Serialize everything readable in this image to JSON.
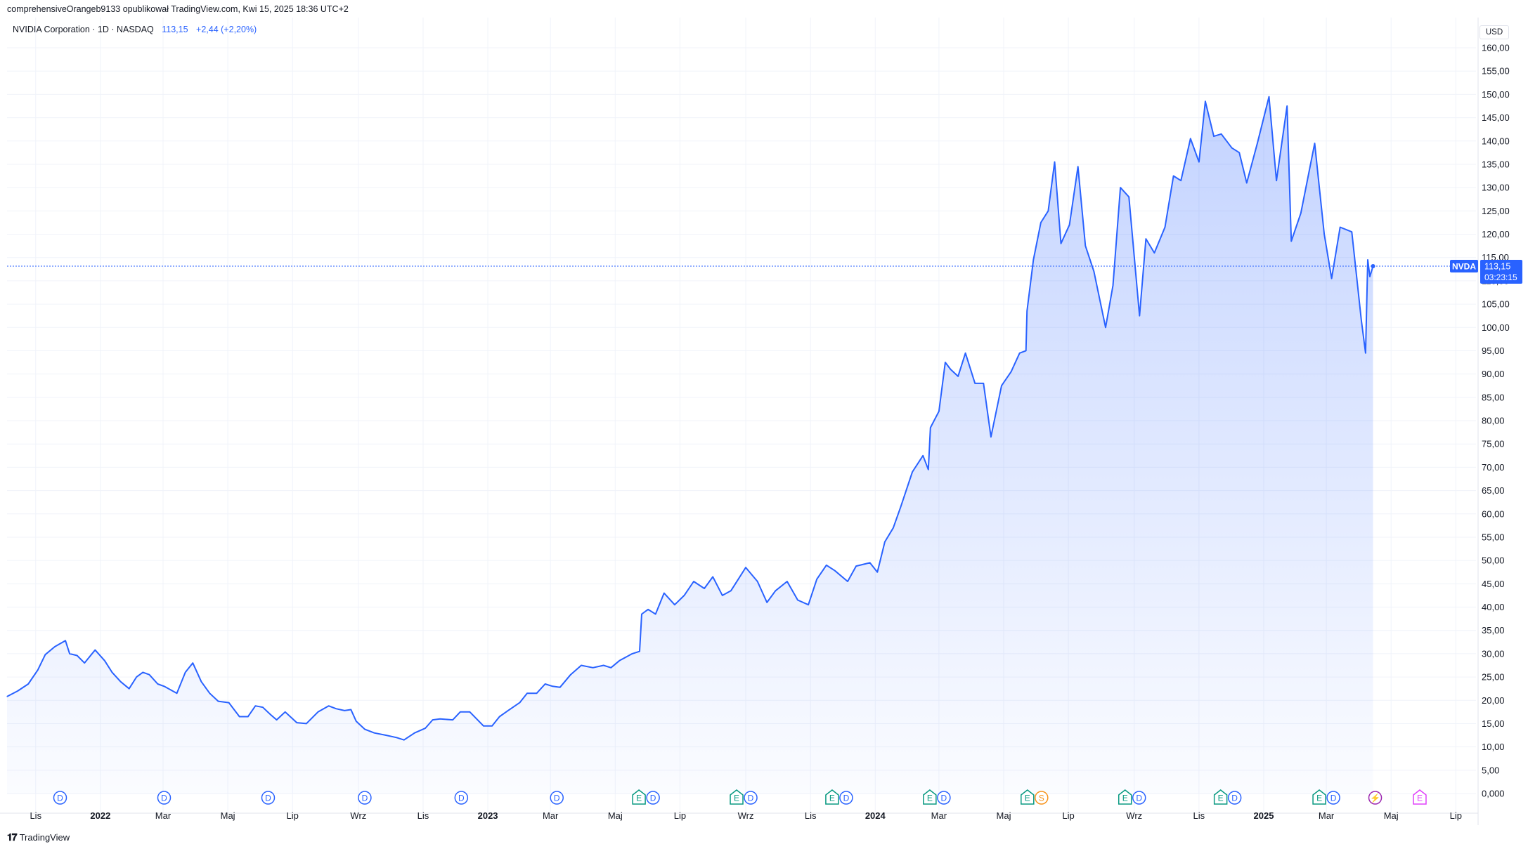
{
  "caption": "comprehensiveOrangeb9133 opublikował TradingView.com, Kwi 15, 2025 18:36 UTC+2",
  "legend": {
    "symbol": "NVIDIA Corporation · 1D · NASDAQ",
    "last": "113,15",
    "change": "+2,44 (+2,20%)"
  },
  "currency": "USD",
  "price_label": {
    "ticker": "NVDA",
    "price": "113,15",
    "countdown": "03:23:15"
  },
  "brand": "TradingView",
  "colors": {
    "line": "#2962ff",
    "fill": "#2962ff",
    "grid": "#f0f3fa",
    "earnings": "#089981",
    "dividend": "#2962ff",
    "split": "#f7931a",
    "event_purple": "#9c27b0",
    "event_magenta": "#e040fb"
  },
  "chart_data": {
    "type": "area",
    "title": "NVIDIA Corporation · 1D · NASDAQ",
    "ylabel": "USD",
    "ylim": [
      0,
      160
    ],
    "grid": true,
    "y_ticks": [
      "0,000",
      "5,00",
      "10,00",
      "15,00",
      "20,00",
      "25,00",
      "30,00",
      "35,00",
      "40,00",
      "45,00",
      "50,00",
      "55,00",
      "60,00",
      "65,00",
      "70,00",
      "75,00",
      "80,00",
      "85,00",
      "90,00",
      "95,00",
      "100,00",
      "105,00",
      "110,00",
      "115,00",
      "120,00",
      "125,00",
      "130,00",
      "135,00",
      "140,00",
      "145,00",
      "150,00",
      "155,00",
      "160,00"
    ],
    "x_ticks": [
      {
        "label": "Lis",
        "date": "2021-11-01",
        "bold": false
      },
      {
        "label": "2022",
        "date": "2022-01-01",
        "bold": true
      },
      {
        "label": "Mar",
        "date": "2022-03-01",
        "bold": false
      },
      {
        "label": "Maj",
        "date": "2022-05-01",
        "bold": false
      },
      {
        "label": "Lip",
        "date": "2022-07-01",
        "bold": false
      },
      {
        "label": "Wrz",
        "date": "2022-09-01",
        "bold": false
      },
      {
        "label": "Lis",
        "date": "2022-11-01",
        "bold": false
      },
      {
        "label": "2023",
        "date": "2023-01-01",
        "bold": true
      },
      {
        "label": "Mar",
        "date": "2023-03-01",
        "bold": false
      },
      {
        "label": "Maj",
        "date": "2023-05-01",
        "bold": false
      },
      {
        "label": "Lip",
        "date": "2023-07-01",
        "bold": false
      },
      {
        "label": "Wrz",
        "date": "2023-09-01",
        "bold": false
      },
      {
        "label": "Lis",
        "date": "2023-11-01",
        "bold": false
      },
      {
        "label": "2024",
        "date": "2024-01-01",
        "bold": true
      },
      {
        "label": "Mar",
        "date": "2024-03-01",
        "bold": false
      },
      {
        "label": "Maj",
        "date": "2024-05-01",
        "bold": false
      },
      {
        "label": "Lip",
        "date": "2024-07-01",
        "bold": false
      },
      {
        "label": "Wrz",
        "date": "2024-09-01",
        "bold": false
      },
      {
        "label": "Lis",
        "date": "2024-11-01",
        "bold": false
      },
      {
        "label": "2025",
        "date": "2025-01-01",
        "bold": true
      },
      {
        "label": "Mar",
        "date": "2025-03-01",
        "bold": false
      },
      {
        "label": "Maj",
        "date": "2025-05-01",
        "bold": false
      },
      {
        "label": "Lip",
        "date": "2025-07-01",
        "bold": false
      }
    ],
    "x_range": [
      "2021-10-05",
      "2025-07-20"
    ],
    "series": [
      {
        "name": "NVDA",
        "points": [
          [
            "2021-10-05",
            20.8
          ],
          [
            "2021-10-15",
            22.0
          ],
          [
            "2021-10-25",
            23.5
          ],
          [
            "2021-11-03",
            26.5
          ],
          [
            "2021-11-10",
            29.8
          ],
          [
            "2021-11-19",
            31.5
          ],
          [
            "2021-11-29",
            32.8
          ],
          [
            "2021-12-03",
            30.0
          ],
          [
            "2021-12-10",
            29.6
          ],
          [
            "2021-12-17",
            28.0
          ],
          [
            "2021-12-27",
            30.8
          ],
          [
            "2022-01-05",
            28.5
          ],
          [
            "2022-01-12",
            26.0
          ],
          [
            "2022-01-20",
            24.0
          ],
          [
            "2022-01-28",
            22.5
          ],
          [
            "2022-02-04",
            25.0
          ],
          [
            "2022-02-10",
            26.0
          ],
          [
            "2022-02-16",
            25.5
          ],
          [
            "2022-02-24",
            23.5
          ],
          [
            "2022-03-02",
            23.0
          ],
          [
            "2022-03-14",
            21.5
          ],
          [
            "2022-03-22",
            26.0
          ],
          [
            "2022-03-29",
            28.0
          ],
          [
            "2022-04-06",
            24.0
          ],
          [
            "2022-04-14",
            21.5
          ],
          [
            "2022-04-22",
            19.8
          ],
          [
            "2022-05-02",
            19.5
          ],
          [
            "2022-05-12",
            16.5
          ],
          [
            "2022-05-20",
            16.5
          ],
          [
            "2022-05-27",
            18.8
          ],
          [
            "2022-06-03",
            18.5
          ],
          [
            "2022-06-10",
            17.0
          ],
          [
            "2022-06-16",
            15.8
          ],
          [
            "2022-06-24",
            17.5
          ],
          [
            "2022-07-05",
            15.2
          ],
          [
            "2022-07-14",
            15.0
          ],
          [
            "2022-07-25",
            17.5
          ],
          [
            "2022-08-04",
            18.8
          ],
          [
            "2022-08-11",
            18.2
          ],
          [
            "2022-08-19",
            17.8
          ],
          [
            "2022-08-25",
            18.0
          ],
          [
            "2022-08-30",
            15.5
          ],
          [
            "2022-09-07",
            13.8
          ],
          [
            "2022-09-16",
            13.0
          ],
          [
            "2022-09-27",
            12.5
          ],
          [
            "2022-10-07",
            12.0
          ],
          [
            "2022-10-14",
            11.5
          ],
          [
            "2022-10-24",
            13.0
          ],
          [
            "2022-11-03",
            14.0
          ],
          [
            "2022-11-10",
            15.8
          ],
          [
            "2022-11-17",
            16.0
          ],
          [
            "2022-11-29",
            15.8
          ],
          [
            "2022-12-06",
            17.5
          ],
          [
            "2022-12-15",
            17.5
          ],
          [
            "2022-12-28",
            14.5
          ],
          [
            "2023-01-05",
            14.5
          ],
          [
            "2023-01-12",
            16.5
          ],
          [
            "2023-01-20",
            17.8
          ],
          [
            "2023-01-31",
            19.5
          ],
          [
            "2023-02-07",
            21.5
          ],
          [
            "2023-02-16",
            21.5
          ],
          [
            "2023-02-24",
            23.5
          ],
          [
            "2023-03-03",
            23.0
          ],
          [
            "2023-03-10",
            22.8
          ],
          [
            "2023-03-20",
            25.5
          ],
          [
            "2023-03-30",
            27.5
          ],
          [
            "2023-04-10",
            27.0
          ],
          [
            "2023-04-20",
            27.5
          ],
          [
            "2023-04-27",
            27.0
          ],
          [
            "2023-05-05",
            28.5
          ],
          [
            "2023-05-17",
            30.0
          ],
          [
            "2023-05-24",
            30.5
          ],
          [
            "2023-05-26",
            38.5
          ],
          [
            "2023-06-01",
            39.5
          ],
          [
            "2023-06-08",
            38.5
          ],
          [
            "2023-06-16",
            43.0
          ],
          [
            "2023-06-26",
            40.5
          ],
          [
            "2023-07-05",
            42.5
          ],
          [
            "2023-07-14",
            45.5
          ],
          [
            "2023-07-24",
            44.0
          ],
          [
            "2023-08-01",
            46.5
          ],
          [
            "2023-08-10",
            42.5
          ],
          [
            "2023-08-18",
            43.5
          ],
          [
            "2023-08-25",
            46.0
          ],
          [
            "2023-09-01",
            48.5
          ],
          [
            "2023-09-12",
            45.5
          ],
          [
            "2023-09-21",
            41.0
          ],
          [
            "2023-09-29",
            43.5
          ],
          [
            "2023-10-10",
            45.5
          ],
          [
            "2023-10-20",
            41.5
          ],
          [
            "2023-10-30",
            40.5
          ],
          [
            "2023-11-07",
            46.0
          ],
          [
            "2023-11-16",
            49.0
          ],
          [
            "2023-11-24",
            47.8
          ],
          [
            "2023-12-06",
            45.5
          ],
          [
            "2023-12-14",
            48.8
          ],
          [
            "2023-12-27",
            49.5
          ],
          [
            "2024-01-03",
            47.5
          ],
          [
            "2024-01-10",
            54.0
          ],
          [
            "2024-01-18",
            57.0
          ],
          [
            "2024-01-25",
            61.5
          ],
          [
            "2024-02-05",
            69.0
          ],
          [
            "2024-02-15",
            72.5
          ],
          [
            "2024-02-20",
            69.5
          ],
          [
            "2024-02-22",
            78.5
          ],
          [
            "2024-03-01",
            82.0
          ],
          [
            "2024-03-07",
            92.5
          ],
          [
            "2024-03-12",
            91.0
          ],
          [
            "2024-03-19",
            89.5
          ],
          [
            "2024-03-26",
            94.5
          ],
          [
            "2024-04-04",
            88.0
          ],
          [
            "2024-04-12",
            88.0
          ],
          [
            "2024-04-19",
            76.5
          ],
          [
            "2024-04-29",
            87.5
          ],
          [
            "2024-05-08",
            90.5
          ],
          [
            "2024-05-16",
            94.5
          ],
          [
            "2024-05-22",
            95.0
          ],
          [
            "2024-05-23",
            103.5
          ],
          [
            "2024-05-29",
            114.5
          ],
          [
            "2024-06-05",
            122.5
          ],
          [
            "2024-06-12",
            125.0
          ],
          [
            "2024-06-18",
            135.5
          ],
          [
            "2024-06-24",
            118.0
          ],
          [
            "2024-07-02",
            122.0
          ],
          [
            "2024-07-10",
            134.5
          ],
          [
            "2024-07-17",
            117.5
          ],
          [
            "2024-07-25",
            112.0
          ],
          [
            "2024-08-05",
            100.0
          ],
          [
            "2024-08-12",
            109.0
          ],
          [
            "2024-08-19",
            130.0
          ],
          [
            "2024-08-27",
            128.0
          ],
          [
            "2024-09-06",
            102.5
          ],
          [
            "2024-09-12",
            119.0
          ],
          [
            "2024-09-20",
            116.0
          ],
          [
            "2024-09-30",
            121.5
          ],
          [
            "2024-10-08",
            132.5
          ],
          [
            "2024-10-15",
            131.5
          ],
          [
            "2024-10-24",
            140.5
          ],
          [
            "2024-11-01",
            135.5
          ],
          [
            "2024-11-07",
            148.5
          ],
          [
            "2024-11-15",
            141.0
          ],
          [
            "2024-11-22",
            141.5
          ],
          [
            "2024-12-02",
            138.5
          ],
          [
            "2024-12-09",
            137.5
          ],
          [
            "2024-12-16",
            131.0
          ],
          [
            "2024-12-26",
            139.5
          ],
          [
            "2025-01-06",
            149.5
          ],
          [
            "2025-01-13",
            131.5
          ],
          [
            "2025-01-23",
            147.5
          ],
          [
            "2025-01-27",
            118.5
          ],
          [
            "2025-02-05",
            124.5
          ],
          [
            "2025-02-18",
            139.5
          ],
          [
            "2025-02-27",
            120.0
          ],
          [
            "2025-03-06",
            110.5
          ],
          [
            "2025-03-14",
            121.5
          ],
          [
            "2025-03-25",
            120.5
          ],
          [
            "2025-04-03",
            101.5
          ],
          [
            "2025-04-07",
            94.5
          ],
          [
            "2025-04-09",
            114.5
          ],
          [
            "2025-04-11",
            110.9
          ],
          [
            "2025-04-14",
            113.15
          ]
        ]
      }
    ],
    "current_price": 113.15,
    "events": [
      {
        "date": "2021-11-24",
        "codes": [
          "D"
        ]
      },
      {
        "date": "2022-03-02",
        "codes": [
          "D"
        ]
      },
      {
        "date": "2022-06-08",
        "codes": [
          "D"
        ]
      },
      {
        "date": "2022-09-07",
        "codes": [
          "D"
        ]
      },
      {
        "date": "2022-12-07",
        "codes": [
          "D"
        ]
      },
      {
        "date": "2023-03-07",
        "codes": [
          "D"
        ]
      },
      {
        "date": "2023-05-30",
        "codes": [
          "E",
          "D"
        ]
      },
      {
        "date": "2023-08-30",
        "codes": [
          "E",
          "D"
        ]
      },
      {
        "date": "2023-11-28",
        "codes": [
          "E",
          "D"
        ]
      },
      {
        "date": "2024-02-28",
        "codes": [
          "E",
          "D"
        ]
      },
      {
        "date": "2024-05-30",
        "codes": [
          "E",
          "S"
        ]
      },
      {
        "date": "2024-08-30",
        "codes": [
          "E",
          "D"
        ]
      },
      {
        "date": "2024-11-28",
        "codes": [
          "E",
          "D"
        ]
      },
      {
        "date": "2025-03-01",
        "codes": [
          "E",
          "D"
        ]
      },
      {
        "date": "2025-04-16",
        "codes": [
          "⚡"
        ]
      },
      {
        "date": "2025-05-28",
        "codes": [
          "E"
        ]
      }
    ]
  }
}
